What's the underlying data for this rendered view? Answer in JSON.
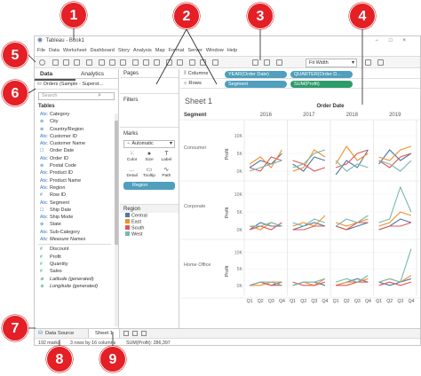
{
  "window": {
    "title": "Tableau - Book1",
    "controls": [
      "−",
      "□",
      "×"
    ]
  },
  "menu": [
    "File",
    "Data",
    "Worksheet",
    "Dashboard",
    "Story",
    "Analysis",
    "Map",
    "Format",
    "Server",
    "Window",
    "Help"
  ],
  "toolbar": {
    "fit": "Fit Width"
  },
  "data_pane": {
    "tabs": [
      "Data",
      "Analytics"
    ],
    "datasource": "Orders (Sample - Superst...",
    "search_placeholder": "Search",
    "tables_header": "Tables",
    "dimensions": [
      {
        "name": "Category",
        "type": "Abc"
      },
      {
        "name": "City",
        "type": "⊕"
      },
      {
        "name": "Country/Region",
        "type": "⊕"
      },
      {
        "name": "Customer ID",
        "type": "Abc"
      },
      {
        "name": "Customer Name",
        "type": "Abc"
      },
      {
        "name": "Order Date",
        "type": "☐"
      },
      {
        "name": "Order ID",
        "type": "Abc"
      },
      {
        "name": "Postal Code",
        "type": "⊕"
      },
      {
        "name": "Product ID",
        "type": "Abc"
      },
      {
        "name": "Product Name",
        "type": "Abc"
      },
      {
        "name": "Region",
        "type": "Abc"
      },
      {
        "name": "Row ID",
        "type": "#"
      },
      {
        "name": "Segment",
        "type": "Abc"
      },
      {
        "name": "Ship Date",
        "type": "☐"
      },
      {
        "name": "Ship Mode",
        "type": "Abc"
      },
      {
        "name": "State",
        "type": "⊕"
      },
      {
        "name": "Sub-Category",
        "type": "Abc"
      },
      {
        "name": "Measure Names",
        "type": "Abc",
        "italic": true
      }
    ],
    "measures": [
      {
        "name": "Discount",
        "type": "#"
      },
      {
        "name": "Profit",
        "type": "#"
      },
      {
        "name": "Quantity",
        "type": "#"
      },
      {
        "name": "Sales",
        "type": "#"
      },
      {
        "name": "Latitude (generated)",
        "type": "⊕",
        "italic": true
      },
      {
        "name": "Longitude (generated)",
        "type": "⊕",
        "italic": true
      }
    ]
  },
  "cards": {
    "pages": "Pages",
    "filters": "Filters",
    "marks": "Marks",
    "mark_type": "Automatic",
    "mark_buttons": [
      {
        "label": "Color",
        "icon": "⁙"
      },
      {
        "label": "Size",
        "icon": "●"
      },
      {
        "label": "Label",
        "icon": "T"
      },
      {
        "label": "Detail",
        "icon": "…"
      },
      {
        "label": "Tooltip",
        "icon": "▭"
      },
      {
        "label": "Path",
        "icon": "∿"
      }
    ],
    "color_pill": "Region",
    "legend_title": "Region",
    "legend": [
      {
        "name": "Central",
        "color": "#4e79a7"
      },
      {
        "name": "East",
        "color": "#f28e2b"
      },
      {
        "name": "South",
        "color": "#e15759"
      },
      {
        "name": "West",
        "color": "#76b7b2"
      }
    ]
  },
  "shelves": {
    "columns_label": "Columns",
    "rows_label": "Rows",
    "columns": [
      "YEAR(Order Date)",
      "QUARTER(Order D..."
    ],
    "rows": [
      "Segment",
      "SUM(Profit)"
    ]
  },
  "sheet_title": "Sheet 1",
  "bottom": {
    "datasource_tab": "Data Source",
    "sheet_tab": "Sheet 1"
  },
  "status": {
    "marks": "192 marks",
    "rows_cols": "3 rows by 16 columns",
    "sum": "SUM(Profit): 286,397"
  },
  "callouts": [
    "1",
    "2",
    "3",
    "4",
    "5",
    "6",
    "7",
    "8",
    "9"
  ],
  "chart_data": {
    "type": "line",
    "top_header": "Order Date",
    "row_header": "Segment",
    "years": [
      "2016",
      "2017",
      "2018",
      "2019"
    ],
    "quarters": [
      "Q1",
      "Q2",
      "Q3",
      "Q4"
    ],
    "segments": [
      "Consumer",
      "Corporate",
      "Home Office"
    ],
    "ylabel": "Profit",
    "yticks": {
      "Consumer": [
        "10K",
        "5K",
        "0K"
      ],
      "Corporate": [
        "10K",
        "5K",
        "0K"
      ],
      "Home Office": [
        "10K",
        "5K",
        "0K"
      ]
    },
    "ylim": {
      "Consumer": [
        -2,
        12
      ],
      "Corporate": [
        -2,
        12
      ],
      "Home Office": [
        -3,
        12
      ]
    },
    "colors": {
      "Central": "#4e79a7",
      "East": "#f28e2b",
      "South": "#e15759",
      "West": "#76b7b2"
    },
    "series": [
      {
        "name": "Central",
        "segment": "Consumer",
        "values": [
          [
            1,
            3,
            2,
            5
          ],
          [
            2,
            0,
            4,
            3
          ],
          [
            -1,
            3,
            1,
            6
          ],
          [
            2,
            6,
            3,
            5
          ]
        ]
      },
      {
        "name": "East",
        "segment": "Consumer",
        "values": [
          [
            2,
            4,
            1,
            6
          ],
          [
            0,
            1,
            6,
            4
          ],
          [
            2,
            7,
            3,
            5
          ],
          [
            4,
            3,
            6,
            7
          ]
        ]
      },
      {
        "name": "South",
        "segment": "Consumer",
        "values": [
          [
            1,
            0,
            4,
            3
          ],
          [
            3,
            2,
            0,
            1
          ],
          [
            1,
            2,
            5,
            6
          ],
          [
            3,
            1,
            4,
            5
          ]
        ]
      },
      {
        "name": "West",
        "segment": "Consumer",
        "values": [
          [
            0,
            1,
            2,
            3
          ],
          [
            1,
            2,
            5,
            6
          ],
          [
            3,
            0,
            2,
            1
          ],
          [
            3,
            2,
            0,
            3
          ]
        ]
      },
      {
        "name": "Central",
        "segment": "Corporate",
        "values": [
          [
            0,
            2,
            1,
            1
          ],
          [
            0,
            1,
            2,
            1
          ],
          [
            1,
            0,
            1,
            2
          ],
          [
            0,
            1,
            3,
            2
          ]
        ]
      },
      {
        "name": "East",
        "segment": "Corporate",
        "values": [
          [
            1,
            0,
            2,
            1
          ],
          [
            1,
            2,
            1,
            4
          ],
          [
            2,
            1,
            2,
            3
          ],
          [
            1,
            2,
            5,
            4
          ]
        ]
      },
      {
        "name": "South",
        "segment": "Corporate",
        "values": [
          [
            0,
            1,
            0,
            2
          ],
          [
            0,
            0,
            1,
            1
          ],
          [
            1,
            0,
            2,
            2
          ],
          [
            0,
            1,
            1,
            2
          ]
        ]
      },
      {
        "name": "West",
        "segment": "Corporate",
        "values": [
          [
            1,
            1,
            2,
            1
          ],
          [
            2,
            1,
            3,
            2
          ],
          [
            1,
            3,
            2,
            4
          ],
          [
            2,
            3,
            12,
            5
          ]
        ]
      },
      {
        "name": "Central",
        "segment": "Home Office",
        "values": [
          [
            0,
            1,
            0,
            1
          ],
          [
            0,
            1,
            1,
            0
          ],
          [
            0,
            1,
            2,
            1
          ],
          [
            1,
            0,
            1,
            2
          ]
        ]
      },
      {
        "name": "East",
        "segment": "Home Office",
        "values": [
          [
            0,
            0,
            1,
            1
          ],
          [
            0,
            1,
            0,
            2
          ],
          [
            0,
            1,
            1,
            2
          ],
          [
            1,
            2,
            1,
            3
          ]
        ]
      },
      {
        "name": "South",
        "segment": "Home Office",
        "values": [
          [
            0,
            1,
            0,
            0
          ],
          [
            1,
            0,
            0,
            1
          ],
          [
            0,
            0,
            1,
            1
          ],
          [
            0,
            1,
            0,
            1
          ]
        ]
      },
      {
        "name": "West",
        "segment": "Home Office",
        "values": [
          [
            0,
            1,
            1,
            0
          ],
          [
            0,
            1,
            1,
            2
          ],
          [
            1,
            2,
            1,
            3
          ],
          [
            1,
            2,
            1,
            11
          ]
        ]
      }
    ]
  }
}
